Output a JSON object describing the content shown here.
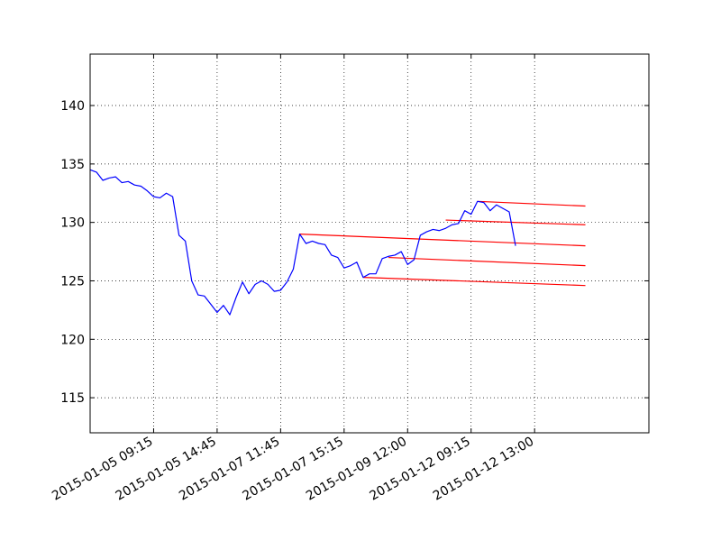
{
  "chart_data": {
    "type": "line",
    "title": "",
    "xlabel": "",
    "ylabel": "",
    "x_categorical": true,
    "x_tick_labels": [
      "2015-01-05 09:15",
      "2015-01-05 14:45",
      "2015-01-07 11:45",
      "2015-01-07 15:15",
      "2015-01-09 12:00",
      "2015-01-12 09:15",
      "2015-01-12 13:00"
    ],
    "x_tick_index": [
      10,
      20,
      30,
      40,
      50,
      60,
      70
    ],
    "xlim_index": [
      0,
      88
    ],
    "ylim": [
      112,
      144.4
    ],
    "y_ticks": [
      115,
      120,
      125,
      130,
      135,
      140
    ],
    "grid": true,
    "grid_style": "dotted",
    "line_color": "#0000ff",
    "trend_color": "#ff0000",
    "series": [
      {
        "values": [
          134.5,
          134.3,
          133.6,
          133.8,
          133.9,
          133.4,
          133.5,
          133.2,
          133.1,
          132.7,
          132.2,
          132.1,
          132.5,
          132.2,
          128.9,
          128.4,
          125.0,
          123.8,
          123.7,
          123.0,
          122.3,
          122.9,
          122.1,
          123.6,
          124.9,
          123.9,
          124.7,
          125.0,
          124.7,
          124.1,
          124.2,
          124.9,
          126.0,
          129.0,
          128.2,
          128.4,
          128.2,
          128.1,
          127.2,
          127.0,
          126.1,
          126.3,
          126.6,
          125.3,
          125.6,
          125.6,
          126.9,
          127.1,
          127.2,
          127.5,
          126.4,
          126.8,
          128.9,
          129.2,
          129.4,
          129.3,
          129.5,
          129.8,
          129.9,
          131.0,
          130.7,
          131.8,
          131.7,
          131.0,
          131.5,
          131.2,
          130.9,
          128.0
        ],
        "x_index_start": 0
      }
    ],
    "trend_lines": [
      {
        "x_start": 33,
        "y_start": 129.0,
        "x_end": 78,
        "y_end": 128.0
      },
      {
        "x_start": 43,
        "y_start": 125.3,
        "x_end": 78,
        "y_end": 124.6
      },
      {
        "x_start": 47,
        "y_start": 127.0,
        "x_end": 78,
        "y_end": 126.3
      },
      {
        "x_start": 56,
        "y_start": 130.2,
        "x_end": 78,
        "y_end": 129.8
      },
      {
        "x_start": 61,
        "y_start": 131.8,
        "x_end": 78,
        "y_end": 131.4
      }
    ]
  }
}
